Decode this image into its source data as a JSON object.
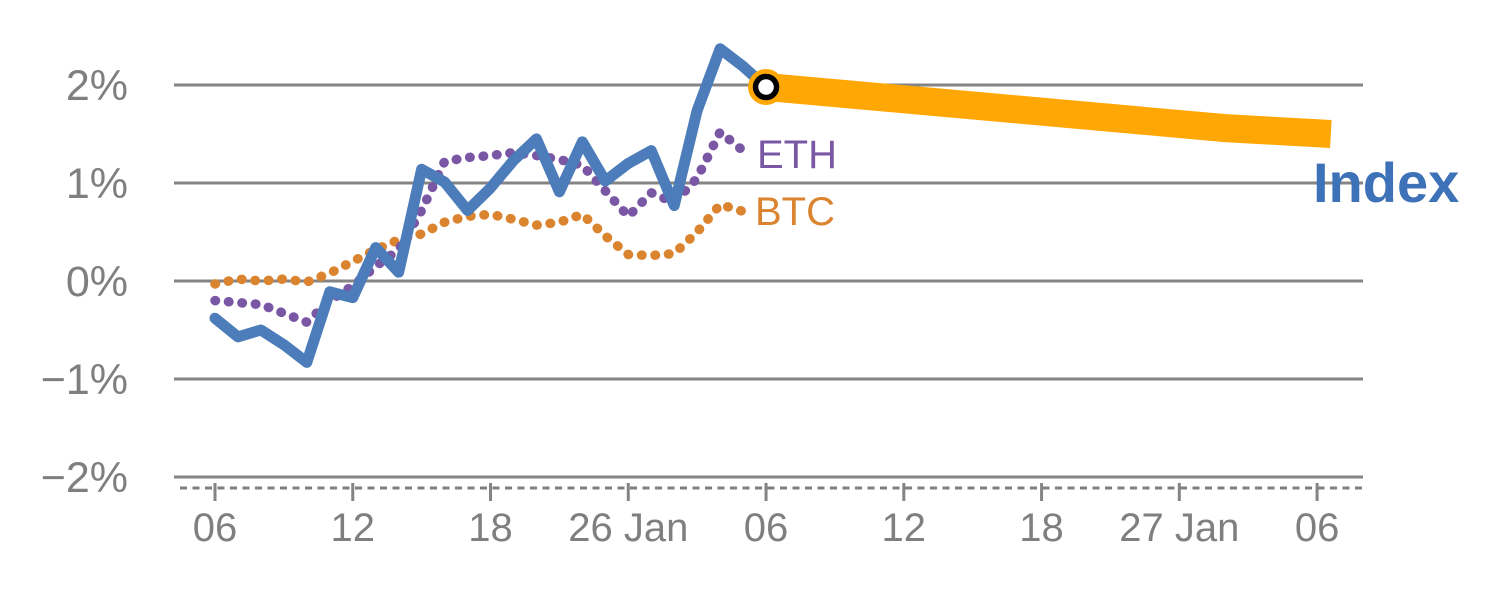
{
  "page": {
    "background": "#ffffff"
  },
  "chart_data": {
    "type": "line",
    "title": "",
    "xlabel": "",
    "ylabel": "",
    "grid": "horizontal",
    "ylim": [
      -2.35,
      2.6
    ],
    "y_ticks": {
      "values": [
        2,
        1,
        0,
        -1,
        -2
      ],
      "labels": [
        "2%",
        "1%",
        "0%",
        "−1%",
        "−2%"
      ]
    },
    "x_ticks": {
      "day_index": [
        0,
        6,
        12,
        18,
        24,
        30,
        36,
        42,
        48
      ],
      "labels": [
        "06",
        "12",
        "18",
        "26 Jan",
        "06",
        "12",
        "18",
        "27 Jan",
        "06"
      ]
    },
    "series": [
      {
        "name": "BTC",
        "role": "history",
        "color": "#db8430",
        "line_style": "dotted",
        "x": [
          0,
          1,
          2,
          3,
          4,
          5,
          6,
          7,
          8,
          9,
          10,
          11,
          12,
          13,
          14,
          15,
          16,
          17,
          18,
          19,
          20,
          21,
          22,
          23
        ],
        "values": [
          -0.03,
          0.02,
          0.0,
          0.02,
          -0.01,
          0.08,
          0.2,
          0.32,
          0.42,
          0.48,
          0.6,
          0.66,
          0.68,
          0.63,
          0.57,
          0.6,
          0.68,
          0.46,
          0.27,
          0.26,
          0.28,
          0.5,
          0.78,
          0.71
        ]
      },
      {
        "name": "ETH",
        "role": "history",
        "color": "#7a57a5",
        "line_style": "dotted",
        "x": [
          0,
          1,
          2,
          3,
          4,
          5,
          6,
          7,
          8,
          9,
          10,
          11,
          12,
          13,
          14,
          15,
          16,
          17,
          18,
          19,
          20,
          21,
          22,
          23
        ],
        "values": [
          -0.2,
          -0.22,
          -0.24,
          -0.33,
          -0.42,
          -0.2,
          -0.05,
          0.15,
          0.32,
          0.72,
          1.22,
          1.26,
          1.28,
          1.31,
          1.28,
          1.24,
          1.18,
          0.92,
          0.66,
          0.9,
          0.8,
          1.05,
          1.52,
          1.33
        ]
      },
      {
        "name": "Index",
        "role": "history",
        "color": "#4c7cba",
        "line_style": "solid",
        "x": [
          0,
          1,
          2,
          3,
          4,
          5,
          6,
          7,
          8,
          9,
          10,
          11,
          12,
          13,
          14,
          15,
          16,
          17,
          18,
          19,
          20,
          21,
          22,
          23,
          24
        ],
        "values": [
          -0.38,
          -0.57,
          -0.5,
          -0.65,
          -0.83,
          -0.11,
          -0.17,
          0.34,
          0.09,
          1.14,
          1.01,
          0.72,
          0.95,
          1.23,
          1.45,
          0.91,
          1.42,
          1.02,
          1.2,
          1.33,
          0.77,
          1.74,
          2.37,
          2.19,
          1.98
        ]
      },
      {
        "name": "Index",
        "role": "forecast",
        "color": "#ffa805",
        "line_style": "solid-thick",
        "x": [
          24,
          44,
          48.6
        ],
        "values": [
          1.98,
          1.56,
          1.5
        ]
      }
    ],
    "marker": {
      "x": 24,
      "value": 1.98,
      "shape": "ring-circle",
      "outer_fill": "#ffa805",
      "ring_color": "#000000",
      "center_fill": "#ffffff"
    },
    "labels": {
      "eth": "ETH",
      "btc": "BTC",
      "index": "Index"
    },
    "colors": {
      "grid": "#848484",
      "axis_text": "#7f7f7f"
    },
    "legend_position": "inline-right"
  }
}
